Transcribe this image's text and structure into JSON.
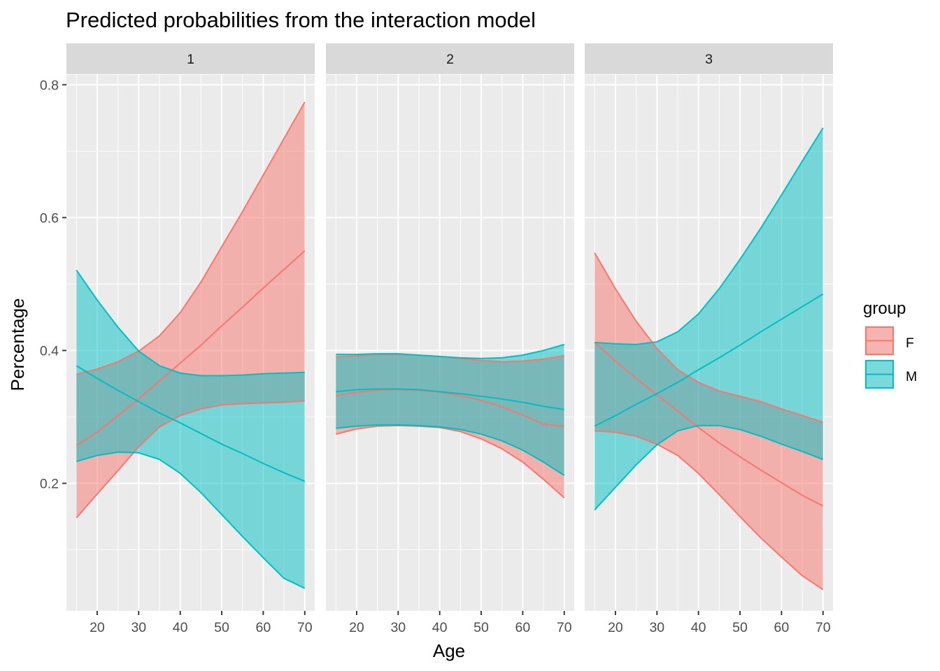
{
  "chart_data": {
    "type": "area",
    "title": "Predicted probabilities from the interaction model",
    "xlabel": "Age",
    "ylabel": "Percentage",
    "xlim": [
      12.6,
      72.4
    ],
    "ylim": [
      0.008,
      0.815
    ],
    "x_ticks": [
      20,
      30,
      40,
      50,
      60,
      70
    ],
    "y_ticks": [
      0.2,
      0.4,
      0.6,
      0.8
    ],
    "y_tick_labels": [
      "0.2",
      "0.4",
      "0.6",
      "0.8"
    ],
    "grid": true,
    "legend": {
      "title": "group",
      "position": "right",
      "entries": [
        {
          "label": "F",
          "color": "#F8766D"
        },
        {
          "label": "M",
          "color": "#00BFC4"
        }
      ]
    },
    "x": [
      15,
      20,
      25,
      30,
      35,
      40,
      45,
      50,
      55,
      60,
      65,
      70
    ],
    "facets": [
      {
        "label": "1",
        "series": [
          {
            "name": "F",
            "color": "#F8766D",
            "fit": [
              0.257,
              0.277,
              0.302,
              0.327,
              0.354,
              0.381,
              0.408,
              0.437,
              0.465,
              0.494,
              0.522,
              0.55
            ],
            "lower": [
              0.148,
              0.184,
              0.219,
              0.255,
              0.285,
              0.302,
              0.312,
              0.318,
              0.32,
              0.321,
              0.322,
              0.324
            ],
            "upper": [
              0.364,
              0.372,
              0.383,
              0.399,
              0.422,
              0.457,
              0.503,
              0.556,
              0.609,
              0.664,
              0.719,
              0.774
            ]
          },
          {
            "name": "M",
            "color": "#00BFC4",
            "fit": [
              0.377,
              0.358,
              0.34,
              0.323,
              0.306,
              0.291,
              0.275,
              0.259,
              0.245,
              0.23,
              0.216,
              0.203
            ],
            "lower": [
              0.233,
              0.242,
              0.247,
              0.246,
              0.236,
              0.215,
              0.186,
              0.153,
              0.12,
              0.088,
              0.057,
              0.042
            ],
            "upper": [
              0.521,
              0.476,
              0.435,
              0.399,
              0.377,
              0.366,
              0.362,
              0.362,
              0.363,
              0.365,
              0.366,
              0.367
            ]
          }
        ]
      },
      {
        "label": "2",
        "series": [
          {
            "name": "F",
            "color": "#F8766D",
            "fit": [
              0.332,
              0.337,
              0.34,
              0.341,
              0.34,
              0.337,
              0.332,
              0.325,
              0.315,
              0.303,
              0.289,
              0.286
            ],
            "lower": [
              0.274,
              0.282,
              0.286,
              0.287,
              0.286,
              0.284,
              0.278,
              0.267,
              0.252,
              0.232,
              0.206,
              0.178
            ],
            "upper": [
              0.39,
              0.392,
              0.394,
              0.394,
              0.393,
              0.391,
              0.388,
              0.385,
              0.383,
              0.384,
              0.387,
              0.392
            ]
          },
          {
            "name": "M",
            "color": "#00BFC4",
            "fit": [
              0.338,
              0.341,
              0.342,
              0.342,
              0.341,
              0.338,
              0.335,
              0.331,
              0.327,
              0.322,
              0.316,
              0.311
            ],
            "lower": [
              0.283,
              0.286,
              0.288,
              0.288,
              0.287,
              0.285,
              0.281,
              0.274,
              0.264,
              0.25,
              0.232,
              0.212
            ],
            "upper": [
              0.394,
              0.394,
              0.395,
              0.395,
              0.393,
              0.391,
              0.389,
              0.388,
              0.389,
              0.393,
              0.4,
              0.409
            ]
          }
        ]
      },
      {
        "label": "3",
        "series": [
          {
            "name": "F",
            "color": "#F8766D",
            "fit": [
              0.412,
              0.384,
              0.358,
              0.333,
              0.309,
              0.284,
              0.261,
              0.24,
              0.22,
              0.201,
              0.182,
              0.166
            ],
            "lower": [
              0.279,
              0.277,
              0.271,
              0.259,
              0.242,
              0.215,
              0.183,
              0.15,
              0.118,
              0.089,
              0.061,
              0.04
            ],
            "upper": [
              0.547,
              0.493,
              0.444,
              0.403,
              0.371,
              0.352,
              0.339,
              0.331,
              0.323,
              0.312,
              0.302,
              0.292
            ]
          },
          {
            "name": "M",
            "color": "#00BFC4",
            "fit": [
              0.286,
              0.302,
              0.319,
              0.335,
              0.352,
              0.371,
              0.389,
              0.408,
              0.428,
              0.447,
              0.466,
              0.485
            ],
            "lower": [
              0.16,
              0.194,
              0.228,
              0.258,
              0.279,
              0.287,
              0.287,
              0.281,
              0.271,
              0.259,
              0.248,
              0.236
            ],
            "upper": [
              0.412,
              0.41,
              0.409,
              0.413,
              0.428,
              0.455,
              0.493,
              0.537,
              0.584,
              0.634,
              0.685,
              0.735
            ]
          }
        ]
      }
    ]
  }
}
